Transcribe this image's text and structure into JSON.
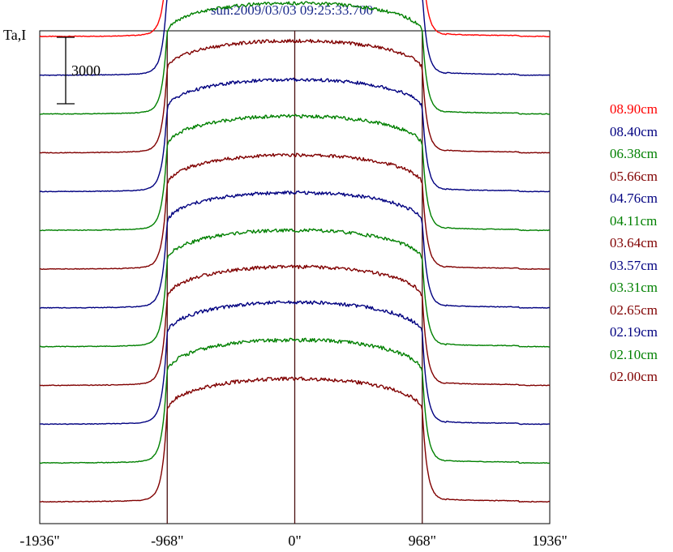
{
  "chart_data": {
    "type": "line",
    "title": "sun:2009/03/03 09:25:33.700",
    "ylabel": "Ta,I",
    "xlabel": "",
    "x_ticks": [
      "-1936\"",
      "-968\"",
      "0\"",
      "968\"",
      "1936\""
    ],
    "xlim": [
      -1936,
      1936
    ],
    "reference_lines_x": [
      -968,
      0,
      968
    ],
    "scale_bar_label": "3000",
    "scale_bar_value": 3000,
    "grid": false,
    "legend_position": "right",
    "series": [
      {
        "name": "08.90cm",
        "color": "#ff0000",
        "offset": 21000,
        "disk_peak": 4800
      },
      {
        "name": "08.40cm",
        "color": "#000080",
        "offset": 19250,
        "disk_peak": 4900
      },
      {
        "name": "06.38cm",
        "color": "#008000",
        "offset": 17500,
        "disk_peak": 5000
      },
      {
        "name": "05.66cm",
        "color": "#800000",
        "offset": 15750,
        "disk_peak": 5050
      },
      {
        "name": "04.76cm",
        "color": "#000080",
        "offset": 14000,
        "disk_peak": 5050
      },
      {
        "name": "04.11cm",
        "color": "#008000",
        "offset": 12250,
        "disk_peak": 5150
      },
      {
        "name": "03.64cm",
        "color": "#800000",
        "offset": 10500,
        "disk_peak": 5150
      },
      {
        "name": "03.57cm",
        "color": "#000080",
        "offset": 8750,
        "disk_peak": 5200
      },
      {
        "name": "03.31cm",
        "color": "#008000",
        "offset": 7000,
        "disk_peak": 5250
      },
      {
        "name": "02.65cm",
        "color": "#800000",
        "offset": 5250,
        "disk_peak": 5350
      },
      {
        "name": "02.19cm",
        "color": "#000080",
        "offset": 3500,
        "disk_peak": 5500
      },
      {
        "name": "02.10cm",
        "color": "#008000",
        "offset": 1750,
        "disk_peak": 5550
      },
      {
        "name": "02.00cm",
        "color": "#800000",
        "offset": 0,
        "disk_peak": 5550
      }
    ]
  }
}
